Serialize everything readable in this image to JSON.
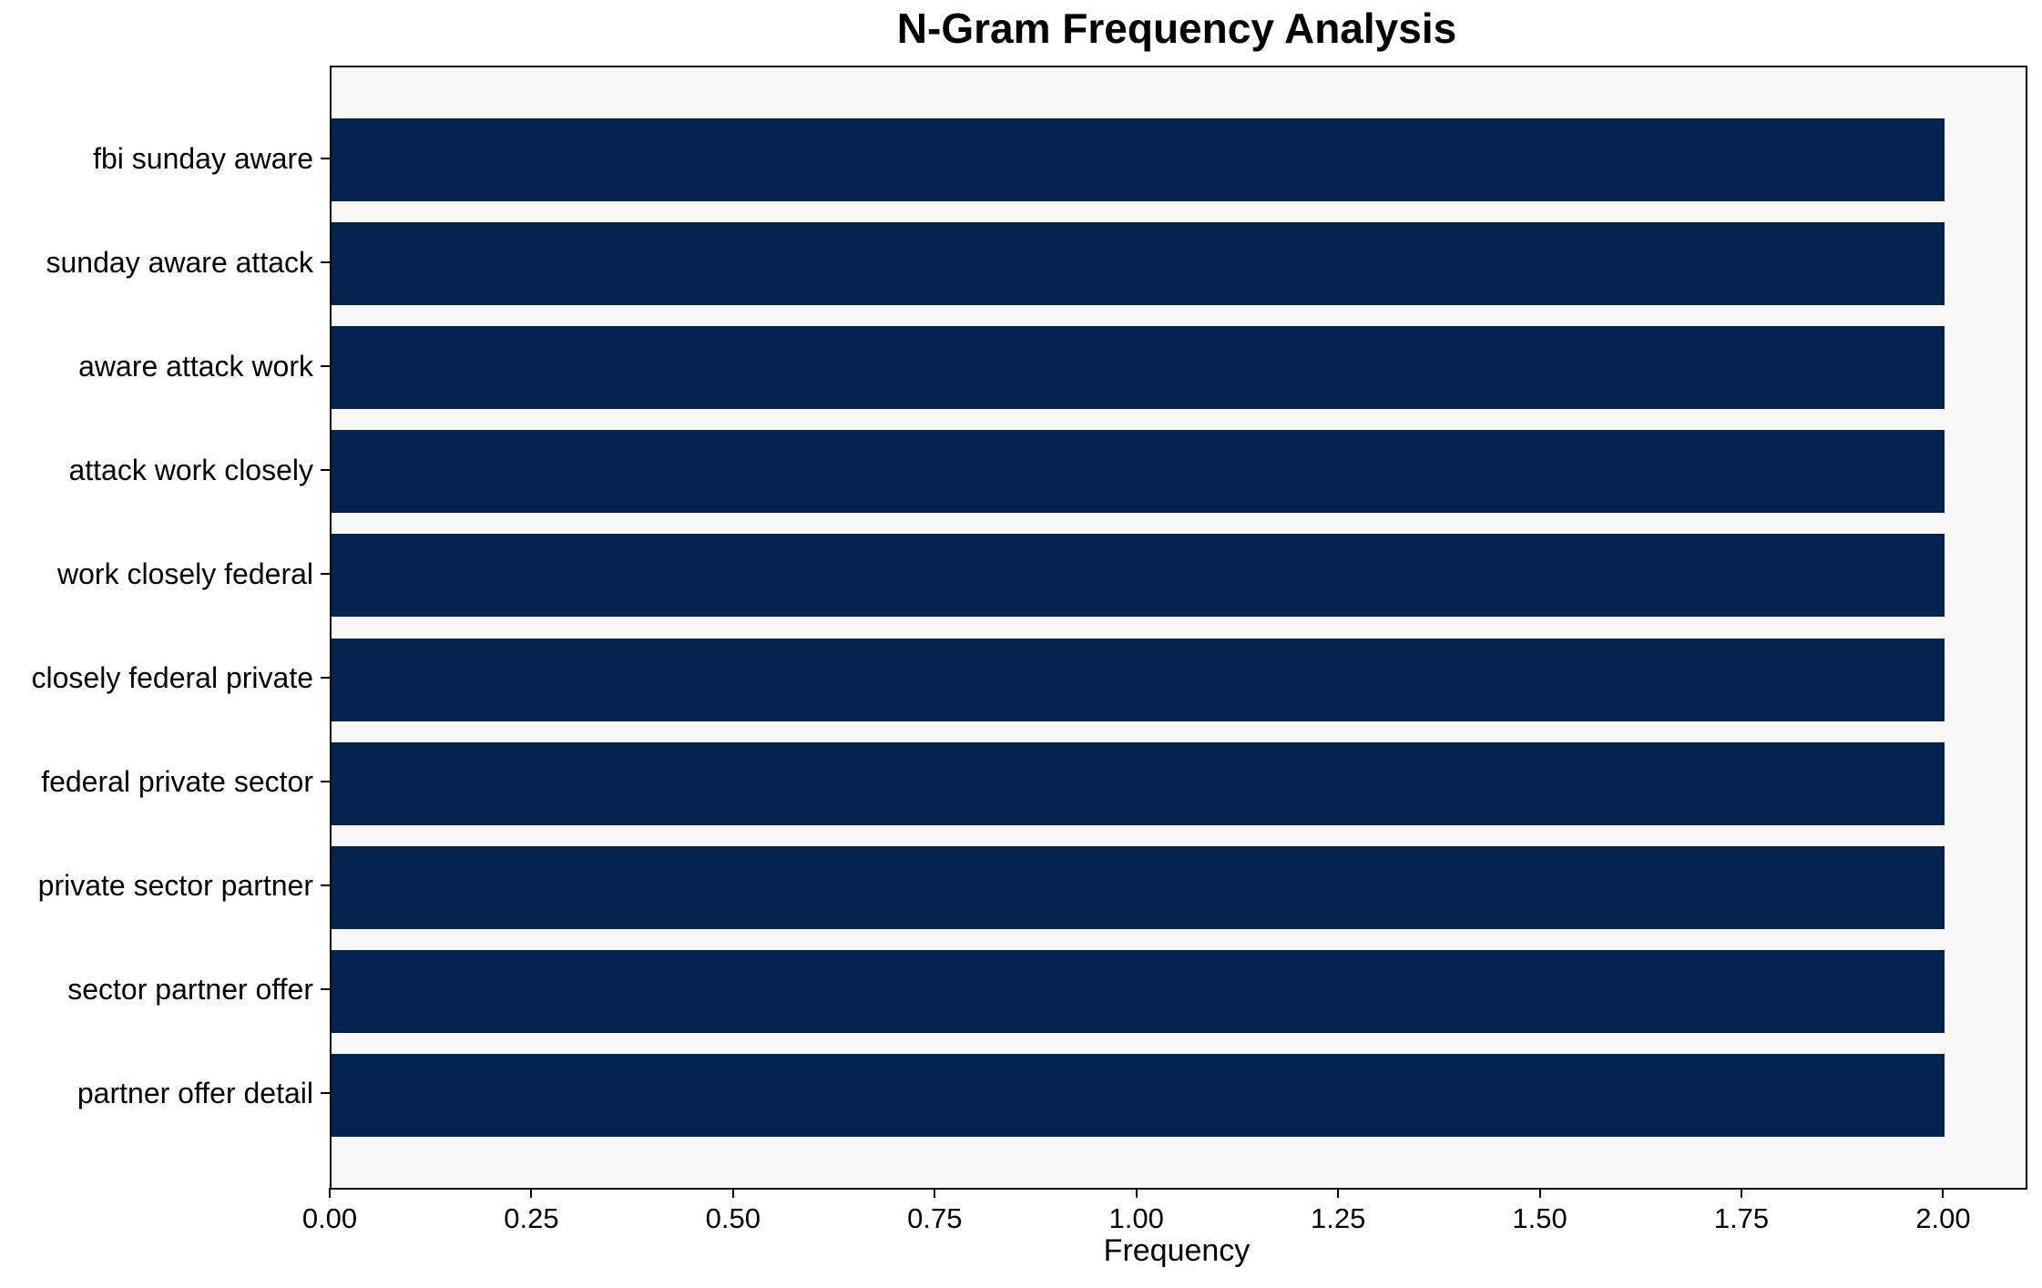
{
  "chart_data": {
    "type": "bar",
    "orientation": "horizontal",
    "title": "N-Gram Frequency Analysis",
    "xlabel": "Frequency",
    "ylabel": "",
    "categories": [
      "fbi sunday aware",
      "sunday aware attack",
      "aware attack work",
      "attack work closely",
      "work closely federal",
      "closely federal private",
      "federal private sector",
      "private sector partner",
      "sector partner offer",
      "partner offer detail"
    ],
    "values": [
      2,
      2,
      2,
      2,
      2,
      2,
      2,
      2,
      2,
      2
    ],
    "xlim": [
      0,
      2.1
    ],
    "xticks": [
      0,
      0.25,
      0.5,
      0.75,
      1,
      1.25,
      1.5,
      1.75,
      2
    ],
    "xtick_labels": [
      "0.00",
      "0.25",
      "0.50",
      "0.75",
      "1.00",
      "1.25",
      "1.50",
      "1.75",
      "2.00"
    ],
    "grid": false,
    "legend": "none",
    "colors": {
      "bar": "#01234d",
      "plot_background": "#f7f7f7",
      "figure_background": "#ffffff",
      "spine": "#000000",
      "text": "#000000"
    }
  }
}
